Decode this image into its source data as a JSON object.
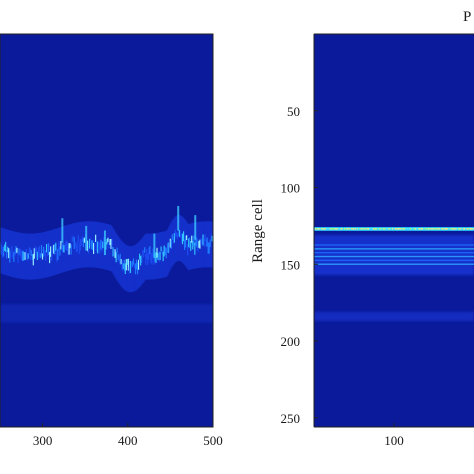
{
  "chart_data": [
    {
      "type": "heatmap",
      "title": "",
      "xlabel": "",
      "ylabel": "",
      "xlim": [
        250,
        500
      ],
      "ylim": [
        0,
        256
      ],
      "x_ticks": [
        {
          "value": 300,
          "label": "300"
        },
        {
          "value": 400,
          "label": "400"
        },
        {
          "value": 500,
          "label": "500"
        }
      ],
      "y_ticks": [],
      "colormap": "jet",
      "background_color": "#0a1a9a",
      "features": [
        {
          "kind": "echo-band",
          "x_range": [
            250,
            500
          ],
          "center_row": 140,
          "description_value": "bright wavy range track"
        },
        {
          "kind": "faint-band",
          "x_range": [
            250,
            500
          ],
          "center_row": 182
        }
      ]
    },
    {
      "type": "heatmap",
      "title": "P",
      "xlabel": "",
      "ylabel": "Range cell",
      "xlim": [
        0,
        200
      ],
      "ylim": [
        0,
        256
      ],
      "x_ticks": [
        {
          "value": 100,
          "label": "100"
        }
      ],
      "y_ticks": [
        {
          "value": 50,
          "label": "50"
        },
        {
          "value": 100,
          "label": "100"
        },
        {
          "value": 150,
          "label": "150"
        },
        {
          "value": 200,
          "label": "200"
        },
        {
          "value": 250,
          "label": "250"
        }
      ],
      "colormap": "jet",
      "background_color": "#0a1a9a",
      "features": [
        {
          "kind": "echo-line",
          "row": 127
        },
        {
          "kind": "echo-band",
          "center_row": 143
        },
        {
          "kind": "faint-band",
          "center_row": 184
        }
      ]
    }
  ]
}
